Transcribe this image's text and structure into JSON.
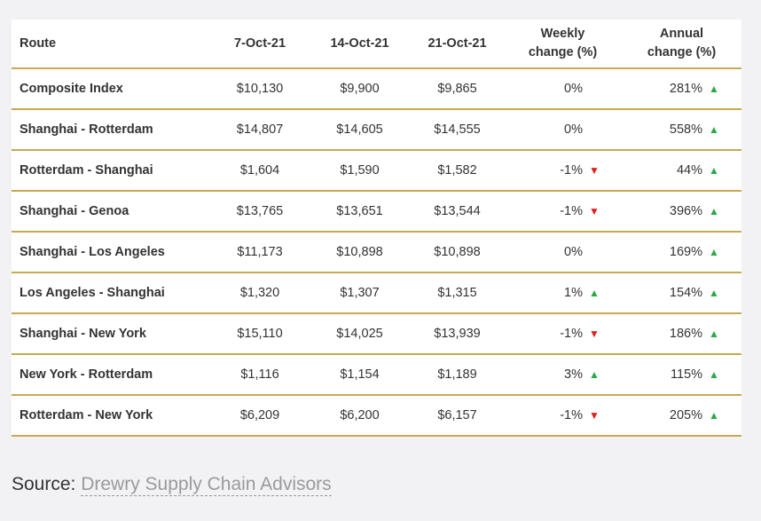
{
  "chart_data": {
    "type": "table",
    "columns": [
      "Route",
      "7-Oct-21",
      "14-Oct-21",
      "21-Oct-21",
      "Weekly change (%)",
      "Annual change (%)"
    ],
    "header": {
      "route": "Route",
      "d1": "7-Oct-21",
      "d2": "14-Oct-21",
      "d3": "21-Oct-21",
      "weekly_line1": "Weekly",
      "weekly_line2": "change (%)",
      "annual_line1": "Annual",
      "annual_line2": "change (%)"
    },
    "rows": [
      {
        "route": "Composite Index",
        "d1": "$10,130",
        "d2": "$9,900",
        "d3": "$9,865",
        "weekly": "0%",
        "weekly_trend": "none",
        "annual": "281%",
        "annual_trend": "up"
      },
      {
        "route": "Shanghai - Rotterdam",
        "d1": "$14,807",
        "d2": "$14,605",
        "d3": "$14,555",
        "weekly": "0%",
        "weekly_trend": "none",
        "annual": "558%",
        "annual_trend": "up"
      },
      {
        "route": "Rotterdam - Shanghai",
        "d1": "$1,604",
        "d2": "$1,590",
        "d3": "$1,582",
        "weekly": "-1%",
        "weekly_trend": "down",
        "annual": "44%",
        "annual_trend": "up"
      },
      {
        "route": "Shanghai - Genoa",
        "d1": "$13,765",
        "d2": "$13,651",
        "d3": "$13,544",
        "weekly": "-1%",
        "weekly_trend": "down",
        "annual": "396%",
        "annual_trend": "up"
      },
      {
        "route": "Shanghai - Los Angeles",
        "d1": "$11,173",
        "d2": "$10,898",
        "d3": "$10,898",
        "weekly": "0%",
        "weekly_trend": "none",
        "annual": "169%",
        "annual_trend": "up"
      },
      {
        "route": "Los Angeles - Shanghai",
        "d1": "$1,320",
        "d2": "$1,307",
        "d3": "$1,315",
        "weekly": "1%",
        "weekly_trend": "up",
        "annual": "154%",
        "annual_trend": "up"
      },
      {
        "route": "Shanghai - New York",
        "d1": "$15,110",
        "d2": "$14,025",
        "d3": "$13,939",
        "weekly": "-1%",
        "weekly_trend": "down",
        "annual": "186%",
        "annual_trend": "up"
      },
      {
        "route": "New York - Rotterdam",
        "d1": "$1,116",
        "d2": "$1,154",
        "d3": "$1,189",
        "weekly": "3%",
        "weekly_trend": "up",
        "annual": "115%",
        "annual_trend": "up"
      },
      {
        "route": "Rotterdam - New York",
        "d1": "$6,209",
        "d2": "$6,200",
        "d3": "$6,157",
        "weekly": "-1%",
        "weekly_trend": "down",
        "annual": "205%",
        "annual_trend": "up"
      }
    ]
  },
  "source": {
    "label": "Source:",
    "organization": "Drewry Supply Chain Advisors"
  },
  "colors": {
    "rule": "#c8a951",
    "up_arrow": "#2aa84a",
    "down_arrow": "#e02020",
    "text": "#333333",
    "source_link": "#9a9a9a"
  },
  "icons": {
    "up": "triangle-up-icon",
    "down": "triangle-down-icon"
  }
}
